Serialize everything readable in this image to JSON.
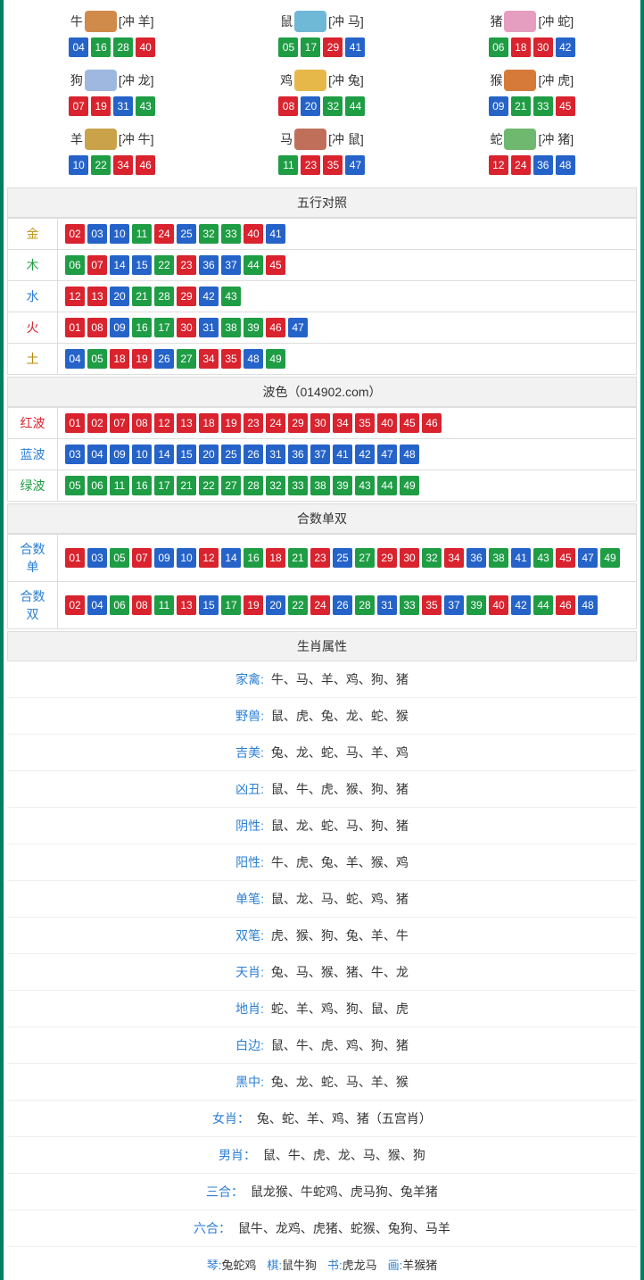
{
  "colors": {
    "red": "#d9232e",
    "blue": "#2563c9",
    "green": "#1f9d45",
    "header_bg": "#f2f2f2",
    "border": "#ddd",
    "frame": "#008060",
    "gold": "#c49a1a",
    "wood": "#1f9d45",
    "water": "#2b7fd4",
    "fire": "#d9232e",
    "earth": "#b8860b",
    "zodiac_icons": [
      "#d08a4a",
      "#6fb8d6",
      "#e59ec0",
      "#9fb8e0",
      "#e6b84a",
      "#d67a3a",
      "#c9a24a",
      "#c0705a",
      "#6fb86f"
    ]
  },
  "zodiac": [
    {
      "name": "牛",
      "conflict": "[冲 羊]",
      "balls": [
        {
          "n": "04",
          "c": "blue"
        },
        {
          "n": "16",
          "c": "green"
        },
        {
          "n": "28",
          "c": "green"
        },
        {
          "n": "40",
          "c": "red"
        }
      ]
    },
    {
      "name": "鼠",
      "conflict": "[冲 马]",
      "balls": [
        {
          "n": "05",
          "c": "green"
        },
        {
          "n": "17",
          "c": "green"
        },
        {
          "n": "29",
          "c": "red"
        },
        {
          "n": "41",
          "c": "blue"
        }
      ]
    },
    {
      "name": "猪",
      "conflict": "[冲 蛇]",
      "balls": [
        {
          "n": "06",
          "c": "green"
        },
        {
          "n": "18",
          "c": "red"
        },
        {
          "n": "30",
          "c": "red"
        },
        {
          "n": "42",
          "c": "blue"
        }
      ]
    },
    {
      "name": "狗",
      "conflict": "[冲 龙]",
      "balls": [
        {
          "n": "07",
          "c": "red"
        },
        {
          "n": "19",
          "c": "red"
        },
        {
          "n": "31",
          "c": "blue"
        },
        {
          "n": "43",
          "c": "green"
        }
      ]
    },
    {
      "name": "鸡",
      "conflict": "[冲 兔]",
      "balls": [
        {
          "n": "08",
          "c": "red"
        },
        {
          "n": "20",
          "c": "blue"
        },
        {
          "n": "32",
          "c": "green"
        },
        {
          "n": "44",
          "c": "green"
        }
      ]
    },
    {
      "name": "猴",
      "conflict": "[冲 虎]",
      "balls": [
        {
          "n": "09",
          "c": "blue"
        },
        {
          "n": "21",
          "c": "green"
        },
        {
          "n": "33",
          "c": "green"
        },
        {
          "n": "45",
          "c": "red"
        }
      ]
    },
    {
      "name": "羊",
      "conflict": "[冲 牛]",
      "balls": [
        {
          "n": "10",
          "c": "blue"
        },
        {
          "n": "22",
          "c": "green"
        },
        {
          "n": "34",
          "c": "red"
        },
        {
          "n": "46",
          "c": "red"
        }
      ]
    },
    {
      "name": "马",
      "conflict": "[冲 鼠]",
      "balls": [
        {
          "n": "11",
          "c": "green"
        },
        {
          "n": "23",
          "c": "red"
        },
        {
          "n": "35",
          "c": "red"
        },
        {
          "n": "47",
          "c": "blue"
        }
      ]
    },
    {
      "name": "蛇",
      "conflict": "[冲 猪]",
      "balls": [
        {
          "n": "12",
          "c": "red"
        },
        {
          "n": "24",
          "c": "red"
        },
        {
          "n": "36",
          "c": "blue"
        },
        {
          "n": "48",
          "c": "blue"
        }
      ]
    }
  ],
  "wuxing": {
    "title": "五行对照",
    "rows": [
      {
        "label": "金",
        "color": "gold",
        "balls": [
          {
            "n": "02",
            "c": "red"
          },
          {
            "n": "03",
            "c": "blue"
          },
          {
            "n": "10",
            "c": "blue"
          },
          {
            "n": "11",
            "c": "green"
          },
          {
            "n": "24",
            "c": "red"
          },
          {
            "n": "25",
            "c": "blue"
          },
          {
            "n": "32",
            "c": "green"
          },
          {
            "n": "33",
            "c": "green"
          },
          {
            "n": "40",
            "c": "red"
          },
          {
            "n": "41",
            "c": "blue"
          }
        ]
      },
      {
        "label": "木",
        "color": "wood",
        "balls": [
          {
            "n": "06",
            "c": "green"
          },
          {
            "n": "07",
            "c": "red"
          },
          {
            "n": "14",
            "c": "blue"
          },
          {
            "n": "15",
            "c": "blue"
          },
          {
            "n": "22",
            "c": "green"
          },
          {
            "n": "23",
            "c": "red"
          },
          {
            "n": "36",
            "c": "blue"
          },
          {
            "n": "37",
            "c": "blue"
          },
          {
            "n": "44",
            "c": "green"
          },
          {
            "n": "45",
            "c": "red"
          }
        ]
      },
      {
        "label": "水",
        "color": "water",
        "balls": [
          {
            "n": "12",
            "c": "red"
          },
          {
            "n": "13",
            "c": "red"
          },
          {
            "n": "20",
            "c": "blue"
          },
          {
            "n": "21",
            "c": "green"
          },
          {
            "n": "28",
            "c": "green"
          },
          {
            "n": "29",
            "c": "red"
          },
          {
            "n": "42",
            "c": "blue"
          },
          {
            "n": "43",
            "c": "green"
          }
        ]
      },
      {
        "label": "火",
        "color": "fire",
        "balls": [
          {
            "n": "01",
            "c": "red"
          },
          {
            "n": "08",
            "c": "red"
          },
          {
            "n": "09",
            "c": "blue"
          },
          {
            "n": "16",
            "c": "green"
          },
          {
            "n": "17",
            "c": "green"
          },
          {
            "n": "30",
            "c": "red"
          },
          {
            "n": "31",
            "c": "blue"
          },
          {
            "n": "38",
            "c": "green"
          },
          {
            "n": "39",
            "c": "green"
          },
          {
            "n": "46",
            "c": "red"
          },
          {
            "n": "47",
            "c": "blue"
          }
        ]
      },
      {
        "label": "土",
        "color": "earth",
        "balls": [
          {
            "n": "04",
            "c": "blue"
          },
          {
            "n": "05",
            "c": "green"
          },
          {
            "n": "18",
            "c": "red"
          },
          {
            "n": "19",
            "c": "red"
          },
          {
            "n": "26",
            "c": "blue"
          },
          {
            "n": "27",
            "c": "green"
          },
          {
            "n": "34",
            "c": "red"
          },
          {
            "n": "35",
            "c": "red"
          },
          {
            "n": "48",
            "c": "blue"
          },
          {
            "n": "49",
            "c": "green"
          }
        ]
      }
    ]
  },
  "bose": {
    "title": "波色（014902.com）",
    "rows": [
      {
        "label": "红波",
        "color": "fire",
        "balls": [
          {
            "n": "01",
            "c": "red"
          },
          {
            "n": "02",
            "c": "red"
          },
          {
            "n": "07",
            "c": "red"
          },
          {
            "n": "08",
            "c": "red"
          },
          {
            "n": "12",
            "c": "red"
          },
          {
            "n": "13",
            "c": "red"
          },
          {
            "n": "18",
            "c": "red"
          },
          {
            "n": "19",
            "c": "red"
          },
          {
            "n": "23",
            "c": "red"
          },
          {
            "n": "24",
            "c": "red"
          },
          {
            "n": "29",
            "c": "red"
          },
          {
            "n": "30",
            "c": "red"
          },
          {
            "n": "34",
            "c": "red"
          },
          {
            "n": "35",
            "c": "red"
          },
          {
            "n": "40",
            "c": "red"
          },
          {
            "n": "45",
            "c": "red"
          },
          {
            "n": "46",
            "c": "red"
          }
        ]
      },
      {
        "label": "蓝波",
        "color": "water",
        "balls": [
          {
            "n": "03",
            "c": "blue"
          },
          {
            "n": "04",
            "c": "blue"
          },
          {
            "n": "09",
            "c": "blue"
          },
          {
            "n": "10",
            "c": "blue"
          },
          {
            "n": "14",
            "c": "blue"
          },
          {
            "n": "15",
            "c": "blue"
          },
          {
            "n": "20",
            "c": "blue"
          },
          {
            "n": "25",
            "c": "blue"
          },
          {
            "n": "26",
            "c": "blue"
          },
          {
            "n": "31",
            "c": "blue"
          },
          {
            "n": "36",
            "c": "blue"
          },
          {
            "n": "37",
            "c": "blue"
          },
          {
            "n": "41",
            "c": "blue"
          },
          {
            "n": "42",
            "c": "blue"
          },
          {
            "n": "47",
            "c": "blue"
          },
          {
            "n": "48",
            "c": "blue"
          }
        ]
      },
      {
        "label": "绿波",
        "color": "wood",
        "balls": [
          {
            "n": "05",
            "c": "green"
          },
          {
            "n": "06",
            "c": "green"
          },
          {
            "n": "11",
            "c": "green"
          },
          {
            "n": "16",
            "c": "green"
          },
          {
            "n": "17",
            "c": "green"
          },
          {
            "n": "21",
            "c": "green"
          },
          {
            "n": "22",
            "c": "green"
          },
          {
            "n": "27",
            "c": "green"
          },
          {
            "n": "28",
            "c": "green"
          },
          {
            "n": "32",
            "c": "green"
          },
          {
            "n": "33",
            "c": "green"
          },
          {
            "n": "38",
            "c": "green"
          },
          {
            "n": "39",
            "c": "green"
          },
          {
            "n": "43",
            "c": "green"
          },
          {
            "n": "44",
            "c": "green"
          },
          {
            "n": "49",
            "c": "green"
          }
        ]
      }
    ]
  },
  "heshu": {
    "title": "合数单双",
    "rows": [
      {
        "label": "合数单",
        "color": "water",
        "balls": [
          {
            "n": "01",
            "c": "red"
          },
          {
            "n": "03",
            "c": "blue"
          },
          {
            "n": "05",
            "c": "green"
          },
          {
            "n": "07",
            "c": "red"
          },
          {
            "n": "09",
            "c": "blue"
          },
          {
            "n": "10",
            "c": "blue"
          },
          {
            "n": "12",
            "c": "red"
          },
          {
            "n": "14",
            "c": "blue"
          },
          {
            "n": "16",
            "c": "green"
          },
          {
            "n": "18",
            "c": "red"
          },
          {
            "n": "21",
            "c": "green"
          },
          {
            "n": "23",
            "c": "red"
          },
          {
            "n": "25",
            "c": "blue"
          },
          {
            "n": "27",
            "c": "green"
          },
          {
            "n": "29",
            "c": "red"
          },
          {
            "n": "30",
            "c": "red"
          },
          {
            "n": "32",
            "c": "green"
          },
          {
            "n": "34",
            "c": "red"
          },
          {
            "n": "36",
            "c": "blue"
          },
          {
            "n": "38",
            "c": "green"
          },
          {
            "n": "41",
            "c": "blue"
          },
          {
            "n": "43",
            "c": "green"
          },
          {
            "n": "45",
            "c": "red"
          },
          {
            "n": "47",
            "c": "blue"
          },
          {
            "n": "49",
            "c": "green"
          }
        ]
      },
      {
        "label": "合数双",
        "color": "water",
        "balls": [
          {
            "n": "02",
            "c": "red"
          },
          {
            "n": "04",
            "c": "blue"
          },
          {
            "n": "06",
            "c": "green"
          },
          {
            "n": "08",
            "c": "red"
          },
          {
            "n": "11",
            "c": "green"
          },
          {
            "n": "13",
            "c": "red"
          },
          {
            "n": "15",
            "c": "blue"
          },
          {
            "n": "17",
            "c": "green"
          },
          {
            "n": "19",
            "c": "red"
          },
          {
            "n": "20",
            "c": "blue"
          },
          {
            "n": "22",
            "c": "green"
          },
          {
            "n": "24",
            "c": "red"
          },
          {
            "n": "26",
            "c": "blue"
          },
          {
            "n": "28",
            "c": "green"
          },
          {
            "n": "31",
            "c": "blue"
          },
          {
            "n": "33",
            "c": "green"
          },
          {
            "n": "35",
            "c": "red"
          },
          {
            "n": "37",
            "c": "blue"
          },
          {
            "n": "39",
            "c": "green"
          },
          {
            "n": "40",
            "c": "red"
          },
          {
            "n": "42",
            "c": "blue"
          },
          {
            "n": "44",
            "c": "green"
          },
          {
            "n": "46",
            "c": "red"
          },
          {
            "n": "48",
            "c": "blue"
          }
        ]
      }
    ]
  },
  "attributes": {
    "title": "生肖属性",
    "rows": [
      {
        "label": "家禽:",
        "value": "牛、马、羊、鸡、狗、猪",
        "color": "water"
      },
      {
        "label": "野兽:",
        "value": "鼠、虎、兔、龙、蛇、猴",
        "color": "water"
      },
      {
        "label": "吉美:",
        "value": "兔、龙、蛇、马、羊、鸡",
        "color": "water"
      },
      {
        "label": "凶丑:",
        "value": "鼠、牛、虎、猴、狗、猪",
        "color": "water"
      },
      {
        "label": "阴性:",
        "value": "鼠、龙、蛇、马、狗、猪",
        "color": "water"
      },
      {
        "label": "阳性:",
        "value": "牛、虎、兔、羊、猴、鸡",
        "color": "water"
      },
      {
        "label": "单笔:",
        "value": "鼠、龙、马、蛇、鸡、猪",
        "color": "water"
      },
      {
        "label": "双笔:",
        "value": "虎、猴、狗、兔、羊、牛",
        "color": "water"
      },
      {
        "label": "天肖:",
        "value": "兔、马、猴、猪、牛、龙",
        "color": "water"
      },
      {
        "label": "地肖:",
        "value": "蛇、羊、鸡、狗、鼠、虎",
        "color": "water"
      },
      {
        "label": "白边:",
        "value": "鼠、牛、虎、鸡、狗、猪",
        "color": "water"
      },
      {
        "label": "黑中:",
        "value": "兔、龙、蛇、马、羊、猴",
        "color": "water"
      },
      {
        "label": "女肖：",
        "value": "兔、蛇、羊、鸡、猪（五宫肖）",
        "color": "water"
      },
      {
        "label": "男肖：",
        "value": "鼠、牛、虎、龙、马、猴、狗",
        "color": "water"
      },
      {
        "label": "三合：",
        "value": "鼠龙猴、牛蛇鸡、虎马狗、兔羊猪",
        "color": "water"
      },
      {
        "label": "六合：",
        "value": "鼠牛、龙鸡、虎猪、蛇猴、兔狗、马羊",
        "color": "water"
      }
    ]
  },
  "footer": [
    {
      "label": "琴:",
      "value": "兔蛇鸡",
      "color": "water"
    },
    {
      "label": "棋:",
      "value": "鼠牛狗",
      "color": "water"
    },
    {
      "label": "书:",
      "value": "虎龙马",
      "color": "water"
    },
    {
      "label": "画:",
      "value": "羊猴猪",
      "color": "water"
    }
  ]
}
